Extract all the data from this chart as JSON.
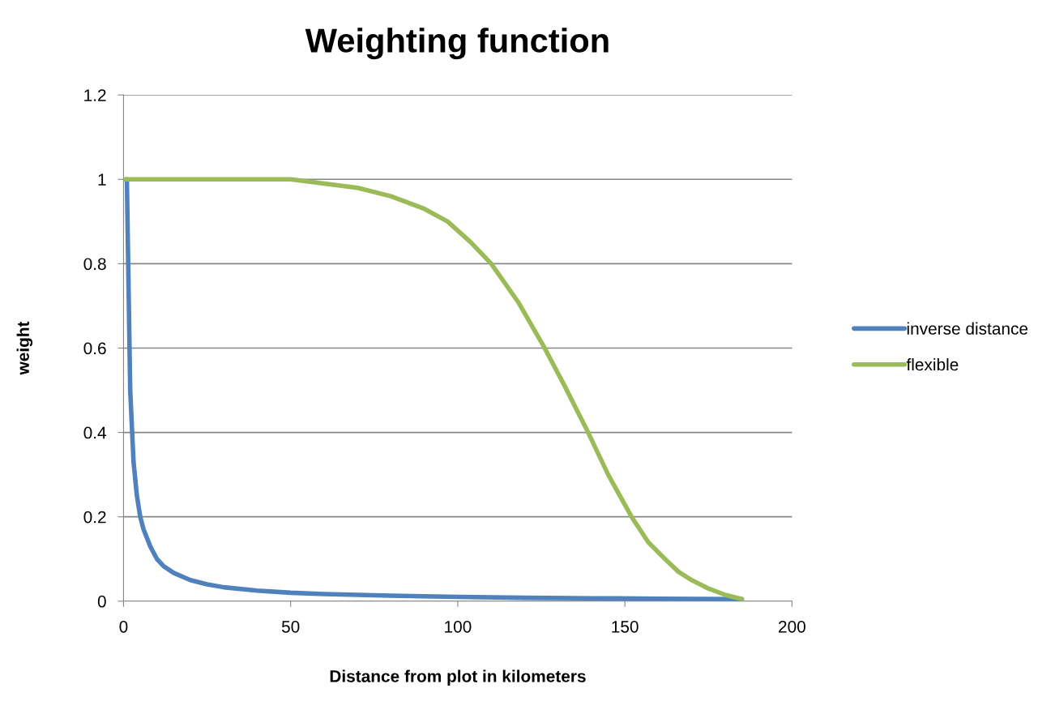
{
  "chart_data": {
    "type": "line",
    "title": "Weighting function",
    "xlabel": "Distance from plot in kilometers",
    "ylabel": "weight",
    "xlim": [
      0,
      200
    ],
    "xticks": [
      0,
      50,
      100,
      150,
      200
    ],
    "ylim": [
      0,
      1.2
    ],
    "yticks": [
      0,
      0.2,
      0.4,
      0.6,
      0.8,
      1,
      1.2
    ],
    "grid": "y",
    "legend": "right",
    "marker": "none",
    "line_style": "solid",
    "series": [
      {
        "name": "inverse distance",
        "color": "#4f81bd",
        "x": [
          1,
          2,
          3,
          4,
          5,
          6,
          8,
          10,
          12,
          15,
          20,
          25,
          30,
          40,
          50,
          60,
          80,
          100,
          120,
          140,
          160,
          185
        ],
        "values": [
          1,
          0.5,
          0.33,
          0.25,
          0.2,
          0.17,
          0.13,
          0.1,
          0.083,
          0.067,
          0.05,
          0.04,
          0.033,
          0.025,
          0.02,
          0.017,
          0.013,
          0.01,
          0.008,
          0.007,
          0.006,
          0.005
        ]
      },
      {
        "name": "flexible",
        "color": "#9bbb59",
        "x": [
          0,
          20,
          40,
          50,
          60,
          70,
          80,
          90,
          97,
          104,
          110,
          118,
          126,
          132,
          139,
          145,
          152,
          157,
          162,
          166,
          170,
          175,
          180,
          185
        ],
        "values": [
          1,
          1,
          1,
          1,
          0.99,
          0.98,
          0.96,
          0.93,
          0.9,
          0.85,
          0.8,
          0.71,
          0.6,
          0.51,
          0.4,
          0.3,
          0.2,
          0.14,
          0.1,
          0.07,
          0.05,
          0.03,
          0.015,
          0.005
        ]
      }
    ]
  }
}
